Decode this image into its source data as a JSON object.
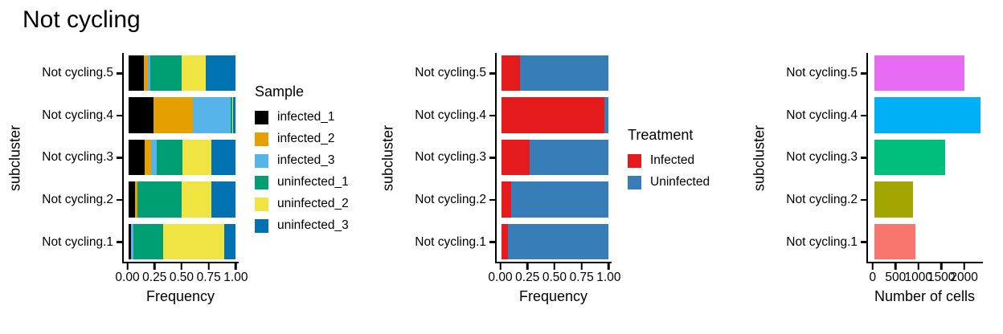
{
  "title": "Not cycling",
  "chart_data": [
    {
      "type": "bar",
      "orientation": "horizontal",
      "stacked": true,
      "xlabel": "Frequency",
      "ylabel": "subcluster",
      "legend_title": "Sample",
      "legend_position": "right",
      "categories": [
        "Not cycling.5",
        "Not cycling.4",
        "Not cycling.3",
        "Not cycling.2",
        "Not cycling.1"
      ],
      "series": [
        {
          "name": "infected_1",
          "color": "#000000",
          "values": [
            0.14,
            0.23,
            0.15,
            0.06,
            0.02
          ]
        },
        {
          "name": "infected_2",
          "color": "#E69F00",
          "values": [
            0.04,
            0.37,
            0.06,
            0.02,
            0.0
          ]
        },
        {
          "name": "infected_3",
          "color": "#56B4E9",
          "values": [
            0.02,
            0.35,
            0.05,
            0.0,
            0.02
          ]
        },
        {
          "name": "uninfected_1",
          "color": "#009E73",
          "values": [
            0.29,
            0.015,
            0.24,
            0.41,
            0.28
          ]
        },
        {
          "name": "uninfected_2",
          "color": "#F0E442",
          "values": [
            0.23,
            0.012,
            0.27,
            0.28,
            0.57
          ]
        },
        {
          "name": "uninfected_3",
          "color": "#0072B2",
          "values": [
            0.28,
            0.023,
            0.23,
            0.23,
            0.11
          ]
        }
      ],
      "xlim": [
        0,
        1
      ],
      "grid": false,
      "xticks": [
        {
          "label": "0.00",
          "value": 0
        },
        {
          "label": "0.25",
          "value": 0.25
        },
        {
          "label": "0.50",
          "value": 0.5
        },
        {
          "label": "0.75",
          "value": 0.75
        },
        {
          "label": "1.00",
          "value": 1
        }
      ],
      "layout": {
        "x0_pct": 4.5,
        "pct_per_unit": 93
      }
    },
    {
      "type": "bar",
      "orientation": "horizontal",
      "stacked": true,
      "xlabel": "Frequency",
      "ylabel": "subcluster",
      "legend_title": "Treatment",
      "legend_position": "right",
      "categories": [
        "Not cycling.5",
        "Not cycling.4",
        "Not cycling.3",
        "Not cycling.2",
        "Not cycling.1"
      ],
      "series": [
        {
          "name": "Infected",
          "color": "#E41A1C",
          "values": [
            0.17,
            0.96,
            0.26,
            0.09,
            0.06
          ]
        },
        {
          "name": "Uninfected",
          "color": "#377EB8",
          "values": [
            0.83,
            0.04,
            0.74,
            0.91,
            0.94
          ]
        }
      ],
      "xlim": [
        0,
        1
      ],
      "grid": false,
      "xticks": [
        {
          "label": "0.00",
          "value": 0
        },
        {
          "label": "0.25",
          "value": 0.25
        },
        {
          "label": "0.50",
          "value": 0.5
        },
        {
          "label": "0.75",
          "value": 0.75
        },
        {
          "label": "1.00",
          "value": 1
        }
      ],
      "layout": {
        "x0_pct": 4.5,
        "pct_per_unit": 93
      }
    },
    {
      "type": "bar",
      "orientation": "horizontal",
      "stacked": false,
      "xlabel": "Number of cells",
      "ylabel": "subcluster",
      "legend_title": null,
      "categories": [
        "Not cycling.5",
        "Not cycling.4",
        "Not cycling.3",
        "Not cycling.2",
        "Not cycling.1"
      ],
      "values": [
        2000,
        2350,
        1580,
        860,
        910
      ],
      "bar_colors": [
        "#E76BF3",
        "#00B0F6",
        "#00BF7D",
        "#A3A500",
        "#F8766D"
      ],
      "xlim": [
        0,
        2400
      ],
      "grid": false,
      "xticks": [
        {
          "label": "0",
          "value": 0
        },
        {
          "label": "500",
          "value": 500
        },
        {
          "label": "1000",
          "value": 1000
        },
        {
          "label": "1500",
          "value": 1500
        },
        {
          "label": "2000",
          "value": 2000
        }
      ],
      "layout": {
        "x0_pct": 5.4,
        "pct_per_unit": 0.03925
      }
    }
  ]
}
